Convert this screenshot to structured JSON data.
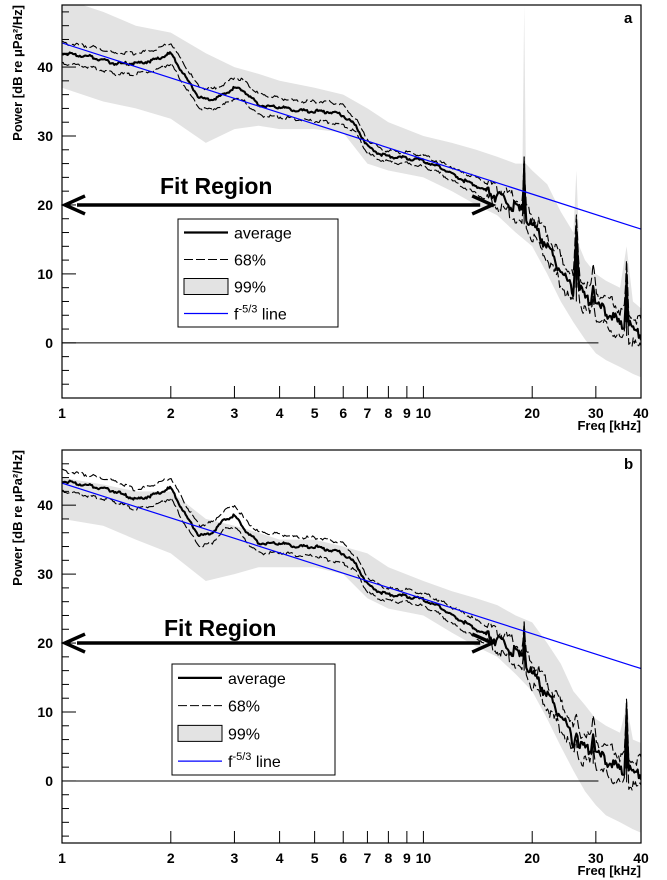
{
  "chart_data": [
    {
      "type": "line",
      "panel_label": "a",
      "xlabel": "Freq [kHz]",
      "ylabel": "Power [dB re μPa²/Hz]",
      "xscale": "log",
      "xlim": [
        1,
        40
      ],
      "ylim": [
        -8,
        49
      ],
      "x_ticks": [
        1,
        2,
        3,
        4,
        5,
        6,
        7,
        8,
        9,
        10,
        20,
        30,
        40
      ],
      "x_tick_labels": [
        "1",
        "2",
        "3",
        "4",
        "5",
        "6",
        "7",
        "8",
        "9",
        "10",
        "20",
        "30",
        "40"
      ],
      "y_ticks": [
        0,
        10,
        20,
        30,
        40
      ],
      "y_tick_labels": [
        "0",
        "10",
        "20",
        "30",
        "40"
      ],
      "grid": false,
      "legend": {
        "position": "center-left",
        "entries": [
          {
            "label": "average",
            "style": "solid-thick"
          },
          {
            "label": "68%",
            "style": "dashed"
          },
          {
            "label": "99%",
            "style": "gray-band"
          },
          {
            "label_prefix": "f",
            "label_sup": "-5/3",
            "label_suffix": " line",
            "style": "blue-line"
          }
        ]
      },
      "annotation": {
        "text": "Fit Region",
        "arrow_from_x": 1,
        "arrow_to_x": 15.5,
        "arrow_y": 20
      },
      "fit_line": {
        "x": [
          1,
          40
        ],
        "y": [
          43.5,
          16.5
        ],
        "color": "#0000ff"
      },
      "series": [
        {
          "role": "average",
          "color": "#000000",
          "x": [
            1,
            1.2,
            1.4,
            1.6,
            1.8,
            2.0,
            2.2,
            2.4,
            2.6,
            2.8,
            3.0,
            3.2,
            3.5,
            4,
            4.5,
            5,
            5.5,
            6,
            6.5,
            7,
            7.5,
            8,
            9,
            10,
            11,
            12,
            13,
            14,
            15,
            16,
            17,
            18,
            18.8,
            19,
            19.2,
            20,
            22,
            24,
            25,
            26,
            26.5,
            27,
            28,
            29,
            29.5,
            30,
            32,
            34,
            35,
            36,
            36.5,
            37,
            38,
            39,
            40
          ],
          "y": [
            42,
            41.5,
            40.5,
            40.5,
            41,
            42,
            38.5,
            35.5,
            35.3,
            36,
            37,
            36.5,
            34.5,
            34.2,
            33.7,
            33.6,
            33.5,
            33,
            31.5,
            28.5,
            27.5,
            27,
            26.8,
            26.4,
            25.5,
            24.5,
            23.5,
            22.8,
            22,
            21.2,
            20.5,
            19.5,
            18.7,
            26,
            18.5,
            17,
            14,
            10.5,
            9,
            7.5,
            16.5,
            8,
            6.5,
            6,
            9,
            5.5,
            4.5,
            3.5,
            2.5,
            3,
            10,
            2.5,
            2,
            1.5,
            1.2
          ]
        },
        {
          "role": "68% upper",
          "color": "#000000",
          "x": [
            1,
            1.2,
            1.4,
            1.6,
            1.8,
            2.0,
            2.2,
            2.4,
            2.6,
            2.8,
            3.0,
            3.2,
            3.5,
            4,
            4.5,
            5,
            5.5,
            6,
            6.5,
            7,
            7.5,
            8,
            9,
            10,
            11,
            12,
            13,
            14,
            15,
            16,
            17,
            18,
            18.8,
            19,
            19.2,
            20,
            22,
            24,
            25,
            26,
            26.5,
            27,
            28,
            29,
            29.5,
            30,
            32,
            34,
            35,
            36,
            36.5,
            37,
            38,
            39,
            40
          ],
          "y": [
            43.5,
            43,
            42,
            42,
            42.5,
            43.5,
            40,
            37,
            36.8,
            37.5,
            38.5,
            38,
            36,
            35.5,
            35,
            35,
            35,
            34.4,
            32.5,
            29.5,
            28.3,
            27.8,
            27.6,
            27.2,
            26.3,
            25.5,
            24.5,
            24,
            23.2,
            22.5,
            21.8,
            21,
            20.2,
            27,
            20,
            18.6,
            15.8,
            12.5,
            11,
            9.5,
            18,
            10,
            8.5,
            8,
            11,
            7.5,
            6.5,
            5.5,
            4.5,
            5,
            11.5,
            4.5,
            4,
            3.5,
            3
          ]
        },
        {
          "role": "68% lower",
          "color": "#000000",
          "x": [
            1,
            1.2,
            1.4,
            1.6,
            1.8,
            2.0,
            2.2,
            2.4,
            2.6,
            2.8,
            3.0,
            3.2,
            3.5,
            4,
            4.5,
            5,
            5.5,
            6,
            6.5,
            7,
            7.5,
            8,
            9,
            10,
            11,
            12,
            13,
            14,
            15,
            16,
            17,
            18,
            18.8,
            19,
            19.2,
            20,
            22,
            24,
            25,
            26,
            26.5,
            27,
            28,
            29,
            29.5,
            30,
            32,
            34,
            35,
            36,
            36.5,
            37,
            38,
            39,
            40
          ],
          "y": [
            40.5,
            40,
            39,
            39,
            39.5,
            40.5,
            37,
            34,
            33.8,
            34.5,
            35.5,
            35,
            33,
            32.8,
            32.4,
            32.2,
            32,
            31.6,
            30.5,
            27.5,
            26.7,
            26.2,
            26,
            25.6,
            24.7,
            23.5,
            22.5,
            21.6,
            20.8,
            19.9,
            19.2,
            18,
            17.2,
            25,
            17,
            15.4,
            12.2,
            8.5,
            7,
            5.5,
            15,
            6,
            4.5,
            4,
            7,
            3.5,
            2.5,
            1.5,
            0.5,
            1,
            8.5,
            0.5,
            0,
            -0.5,
            -0.8
          ]
        },
        {
          "role": "99% upper",
          "color": "#e3e3e3",
          "x": [
            1,
            1.3,
            1.6,
            2.0,
            2.5,
            3.0,
            3.5,
            4,
            5,
            6,
            7,
            8,
            10,
            12,
            14,
            16,
            18,
            18.8,
            19,
            19.2,
            20,
            22,
            24,
            26,
            26.5,
            27,
            28,
            30,
            32,
            35,
            36.5,
            38,
            40
          ],
          "y": [
            50,
            48,
            46,
            45,
            42,
            40,
            39,
            38,
            37,
            36,
            34,
            32,
            30,
            29,
            28,
            27,
            26,
            26,
            49,
            26,
            25,
            23,
            19,
            16,
            25,
            14,
            12,
            10,
            9,
            8,
            14,
            6,
            5
          ]
        },
        {
          "role": "99% lower",
          "color": "#e3e3e3",
          "x": [
            1,
            1.3,
            1.6,
            2.0,
            2.5,
            3.0,
            3.5,
            4,
            5,
            6,
            7,
            8,
            10,
            12,
            14,
            16,
            18,
            20,
            22,
            24,
            26,
            28,
            30,
            32,
            35,
            38,
            40
          ],
          "y": [
            37,
            35,
            34,
            32.5,
            29,
            31,
            31.5,
            31,
            31,
            30.5,
            26,
            25,
            24,
            22,
            20,
            18.5,
            16,
            14,
            10,
            6,
            3,
            0.5,
            -1.5,
            -2.5,
            -3.5,
            -4.5,
            -5
          ]
        }
      ]
    },
    {
      "type": "line",
      "panel_label": "b",
      "xlabel": "Freq [kHz]",
      "ylabel": "Power [dB re μPa²/Hz]",
      "xscale": "log",
      "xlim": [
        1,
        40
      ],
      "ylim": [
        -9,
        48
      ],
      "x_ticks": [
        1,
        2,
        3,
        4,
        5,
        6,
        7,
        8,
        9,
        10,
        20,
        30,
        40
      ],
      "x_tick_labels": [
        "1",
        "2",
        "3",
        "4",
        "5",
        "6",
        "7",
        "8",
        "9",
        "10",
        "20",
        "30",
        "40"
      ],
      "y_ticks": [
        0,
        10,
        20,
        30,
        40
      ],
      "y_tick_labels": [
        "0",
        "10",
        "20",
        "30",
        "40"
      ],
      "grid": false,
      "legend": {
        "position": "center-left",
        "entries": [
          {
            "label": "average",
            "style": "solid-thick"
          },
          {
            "label": "68%",
            "style": "dashed"
          },
          {
            "label": "99%",
            "style": "gray-band"
          },
          {
            "label_prefix": "f",
            "label_sup": "-5/3",
            "label_suffix": " line",
            "style": "blue-line"
          }
        ]
      },
      "annotation": {
        "text": "Fit Region",
        "arrow_from_x": 1,
        "arrow_to_x": 15.5,
        "arrow_y": 20
      },
      "fit_line": {
        "x": [
          1,
          40
        ],
        "y": [
          43.2,
          16.3
        ],
        "color": "#0000ff"
      },
      "series": [
        {
          "role": "average",
          "color": "#000000",
          "x": [
            1,
            1.2,
            1.4,
            1.6,
            1.8,
            2.0,
            2.2,
            2.4,
            2.6,
            2.8,
            3.0,
            3.2,
            3.5,
            4,
            4.5,
            5,
            5.5,
            6,
            6.5,
            7,
            7.5,
            8,
            9,
            10,
            11,
            12,
            13,
            14,
            15,
            16,
            17,
            18,
            18.8,
            19,
            19.2,
            20,
            22,
            24,
            25,
            26,
            26.5,
            27,
            28,
            29,
            29.5,
            30,
            32,
            34,
            35,
            36,
            36.5,
            37,
            38,
            39,
            40
          ],
          "y": [
            43.5,
            42.8,
            42,
            40.8,
            41.5,
            42.5,
            38.5,
            35.5,
            36,
            37.8,
            38.5,
            36.5,
            34.5,
            34.5,
            34,
            34,
            33.5,
            33,
            31.5,
            28.5,
            27.5,
            27,
            26.8,
            26.3,
            25.3,
            24,
            23,
            22,
            21.2,
            20.4,
            19.5,
            18.5,
            17.5,
            22,
            17.3,
            15.5,
            12.5,
            9.5,
            8,
            5.5,
            7.5,
            5,
            4.8,
            4.5,
            7.5,
            4,
            3,
            2.2,
            1.5,
            1.8,
            10.5,
            1.5,
            1.2,
            1.1,
            1
          ]
        },
        {
          "role": "68% upper",
          "color": "#000000",
          "x": [
            1,
            1.2,
            1.4,
            1.6,
            1.8,
            2.0,
            2.2,
            2.4,
            2.6,
            2.8,
            3.0,
            3.2,
            3.5,
            4,
            4.5,
            5,
            5.5,
            6,
            6.5,
            7,
            7.5,
            8,
            9,
            10,
            11,
            12,
            13,
            14,
            15,
            16,
            17,
            18,
            18.8,
            19,
            19.2,
            20,
            22,
            24,
            25,
            26,
            26.5,
            27,
            28,
            29,
            29.5,
            30,
            32,
            34,
            35,
            36,
            36.5,
            37,
            38,
            39,
            40
          ],
          "y": [
            45,
            44.3,
            43.5,
            42.2,
            43,
            44,
            40,
            37,
            37.5,
            39.2,
            40,
            38,
            36,
            35.8,
            35.3,
            35.3,
            35,
            34.4,
            32.6,
            29.6,
            28.5,
            27.9,
            27.7,
            27.2,
            26.3,
            25.2,
            24.3,
            23.3,
            22.5,
            21.8,
            21,
            20,
            19,
            23,
            18.8,
            17.2,
            14.3,
            11.5,
            10,
            7.5,
            9,
            7,
            6.8,
            6.5,
            9,
            6,
            5,
            4.2,
            3.5,
            3.8,
            11.5,
            3.5,
            3.2,
            3.1,
            3
          ]
        },
        {
          "role": "68% lower",
          "color": "#000000",
          "x": [
            1,
            1.2,
            1.4,
            1.6,
            1.8,
            2.0,
            2.2,
            2.4,
            2.6,
            2.8,
            3.0,
            3.2,
            3.5,
            4,
            4.5,
            5,
            5.5,
            6,
            6.5,
            7,
            7.5,
            8,
            9,
            10,
            11,
            12,
            13,
            14,
            15,
            16,
            17,
            18,
            18.8,
            19,
            19.2,
            20,
            22,
            24,
            25,
            26,
            26.5,
            27,
            28,
            29,
            29.5,
            30,
            32,
            34,
            35,
            36,
            36.5,
            37,
            38,
            39,
            40
          ],
          "y": [
            42,
            41.3,
            40.5,
            39.4,
            40,
            41,
            37,
            34,
            34.5,
            36.4,
            37,
            35,
            33,
            33.2,
            32.7,
            32.7,
            32,
            31.6,
            30.4,
            27.4,
            26.5,
            26.1,
            25.9,
            25.4,
            24.3,
            22.8,
            21.7,
            20.7,
            19.9,
            19,
            18,
            17,
            16,
            21,
            15.8,
            13.8,
            10.7,
            7.5,
            6,
            3.5,
            6,
            3,
            2.8,
            2.5,
            6,
            2,
            1,
            0.2,
            -0.5,
            -0.2,
            9.5,
            -0.5,
            -0.8,
            -0.9,
            -1
          ]
        },
        {
          "role": "99% upper",
          "color": "#e3e3e3",
          "x": [
            1,
            1.3,
            1.6,
            2.0,
            2.5,
            3.0,
            3.5,
            4,
            5,
            6,
            7,
            8,
            10,
            12,
            14,
            16,
            18,
            20,
            22,
            24,
            26,
            28,
            30,
            32,
            35,
            36.5,
            38,
            40
          ],
          "y": [
            44,
            43,
            42,
            42,
            38,
            37,
            36,
            35,
            35,
            34,
            33,
            31,
            29,
            27.5,
            26.5,
            25.5,
            24,
            23,
            20,
            17,
            13,
            11,
            9,
            8,
            7,
            11,
            6,
            5.5
          ]
        },
        {
          "role": "99% lower",
          "color": "#e3e3e3",
          "x": [
            1,
            1.3,
            1.6,
            2.0,
            2.5,
            3.0,
            3.5,
            4,
            5,
            6,
            7,
            8,
            10,
            12,
            14,
            16,
            18,
            20,
            22,
            24,
            26,
            28,
            30,
            32,
            35,
            38,
            40
          ],
          "y": [
            38,
            37,
            35,
            33,
            29,
            30,
            31,
            31,
            31,
            30,
            26.5,
            25,
            24,
            21.5,
            19.5,
            18,
            15.5,
            13,
            9,
            5,
            1.5,
            -1.5,
            -3.5,
            -5,
            -6,
            -7,
            -7.5
          ]
        }
      ]
    }
  ]
}
